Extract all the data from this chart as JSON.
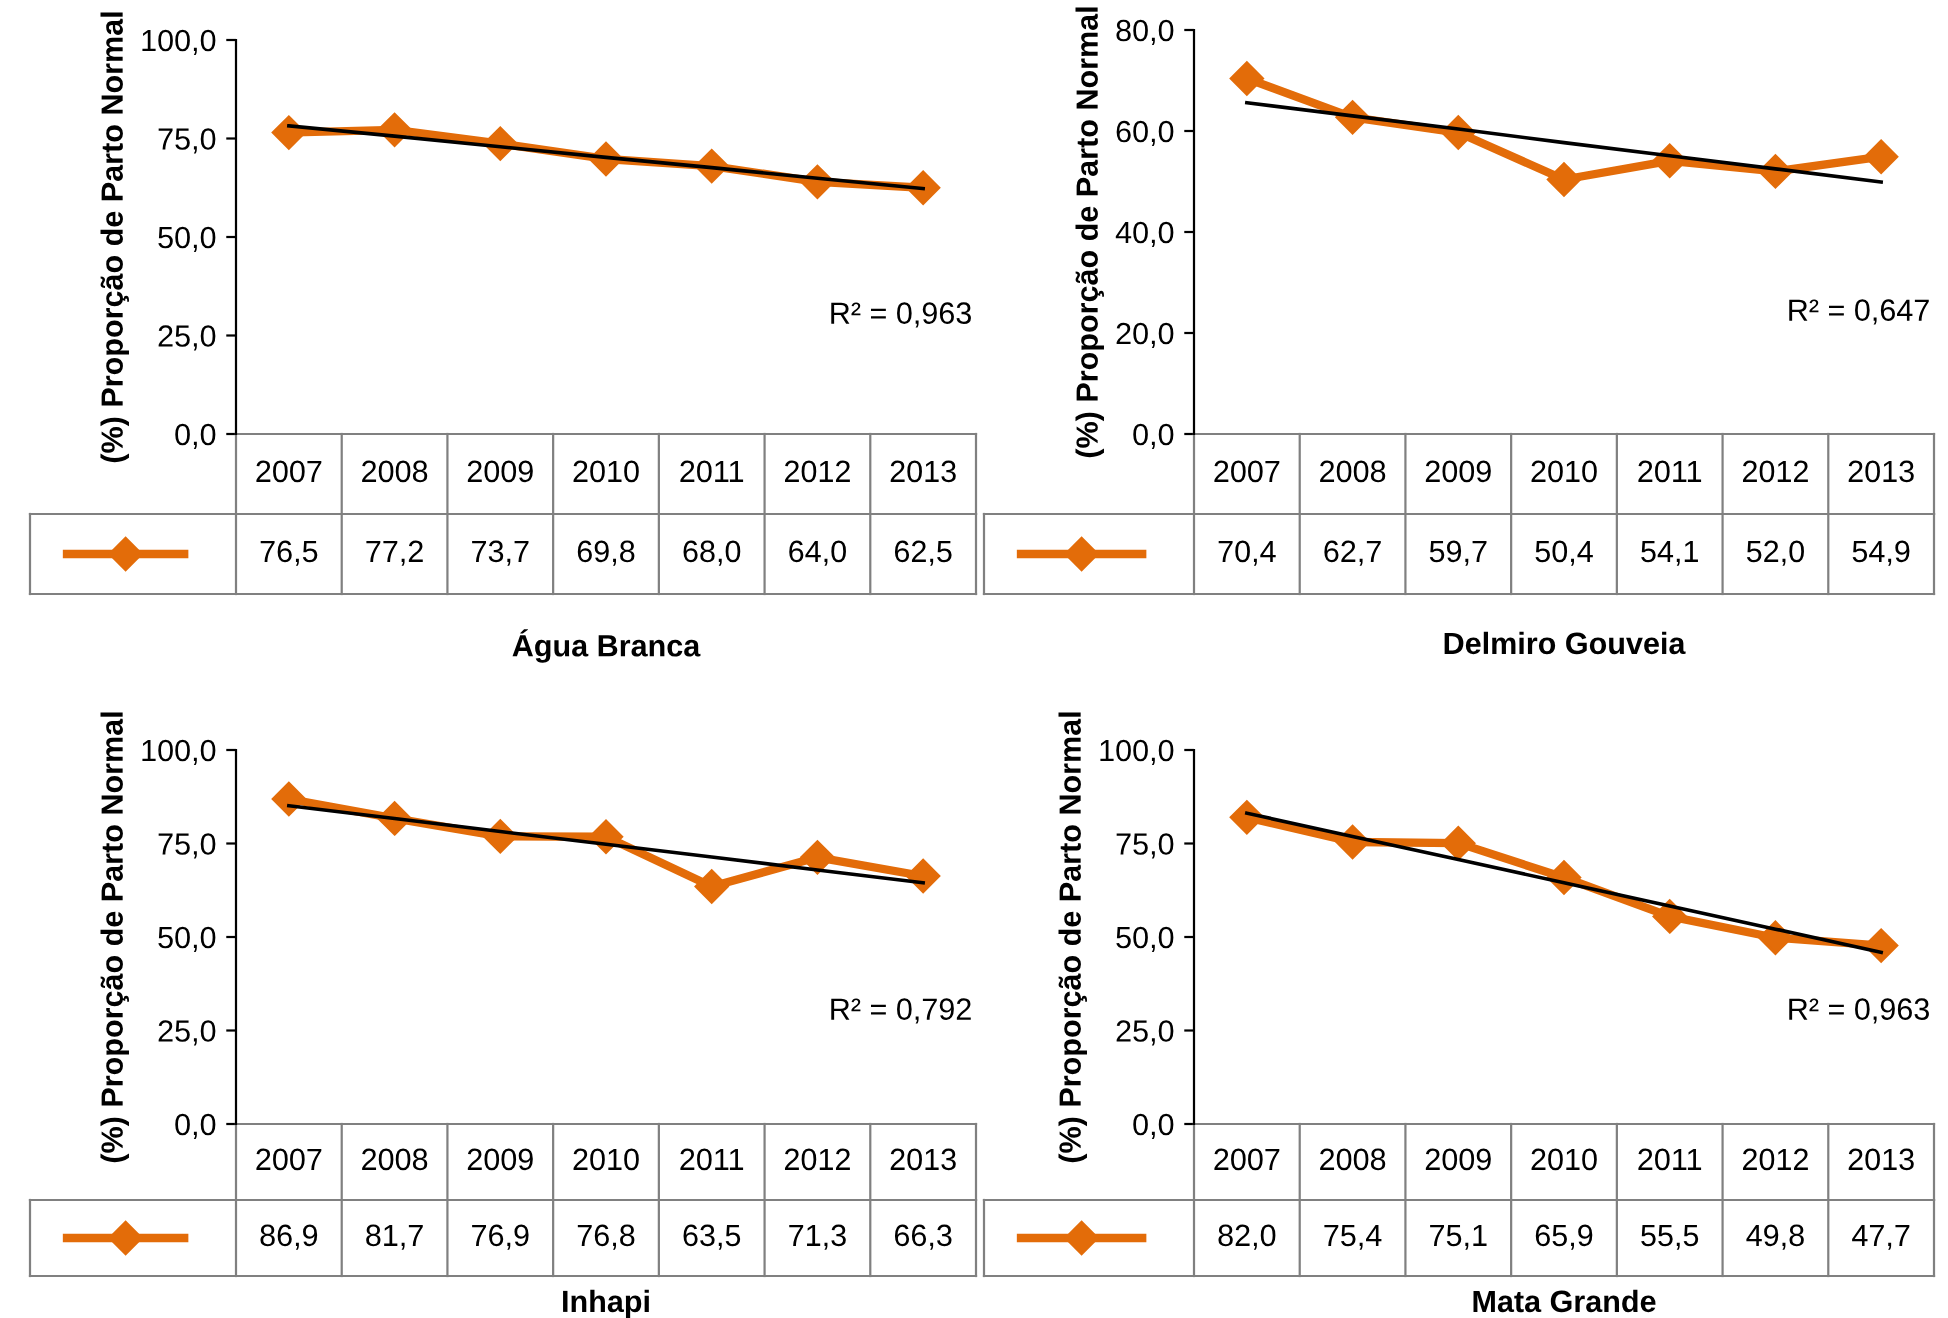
{
  "chart_data": [
    {
      "type": "line",
      "title": "Água Branca",
      "ylabel": "(%) Proporção de Parto Normal",
      "categories": [
        "2007",
        "2008",
        "2009",
        "2010",
        "2011",
        "2012",
        "2013"
      ],
      "ylim": [
        0,
        100
      ],
      "yticks": [
        {
          "value": 0,
          "label": "0,0"
        },
        {
          "value": 25,
          "label": "25,0"
        },
        {
          "value": 50,
          "label": "50,0"
        },
        {
          "value": 75,
          "label": "75,0"
        },
        {
          "value": 100,
          "label": "100,0"
        }
      ],
      "marker": "diamond",
      "grid": false,
      "annotations": [
        "R² = 0,963"
      ],
      "series": [
        {
          "color": "#e36c09",
          "values": [
            76.5,
            77.2,
            73.7,
            69.8,
            68.0,
            64.0,
            62.5
          ],
          "value_labels": [
            "76,5",
            "77,2",
            "73,7",
            "69,8",
            "68,0",
            "64,0",
            "62,5"
          ]
        },
        {
          "type": "line",
          "color": "#000000",
          "marker": "none",
          "values": [
            78.2,
            75.6,
            72.9,
            70.2,
            67.6,
            64.9,
            62.3
          ]
        }
      ]
    },
    {
      "type": "line",
      "title": "Delmiro Gouveia",
      "ylabel": "(%) Proporção de Parto Normal",
      "categories": [
        "2007",
        "2008",
        "2009",
        "2010",
        "2011",
        "2012",
        "2013"
      ],
      "ylim": [
        0,
        80
      ],
      "yticks": [
        {
          "value": 0,
          "label": "0,0"
        },
        {
          "value": 20,
          "label": "20,0"
        },
        {
          "value": 40,
          "label": "40,0"
        },
        {
          "value": 60,
          "label": "60,0"
        },
        {
          "value": 80,
          "label": "80,0"
        }
      ],
      "marker": "diamond",
      "grid": false,
      "annotations": [
        "R² = 0,647"
      ],
      "series": [
        {
          "color": "#e36c09",
          "values": [
            70.4,
            62.7,
            59.7,
            50.4,
            54.1,
            52.0,
            54.9
          ],
          "value_labels": [
            "70,4",
            "62,7",
            "59,7",
            "50,4",
            "54,1",
            "52,0",
            "54,9"
          ]
        },
        {
          "type": "line",
          "color": "#000000",
          "marker": "none",
          "values": [
            65.6,
            63.0,
            60.4,
            57.7,
            55.1,
            52.5,
            49.9
          ]
        }
      ]
    },
    {
      "type": "line",
      "title": "Inhapi",
      "ylabel": "(%) Proporção de Parto Normal",
      "categories": [
        "2007",
        "2008",
        "2009",
        "2010",
        "2011",
        "2012",
        "2013"
      ],
      "ylim": [
        0,
        100
      ],
      "yticks": [
        {
          "value": 0,
          "label": "0,0"
        },
        {
          "value": 25,
          "label": "25,0"
        },
        {
          "value": 50,
          "label": "50,0"
        },
        {
          "value": 75,
          "label": "75,0"
        },
        {
          "value": 100,
          "label": "100,0"
        }
      ],
      "marker": "diamond",
      "grid": false,
      "annotations": [
        "R² = 0,792"
      ],
      "series": [
        {
          "color": "#e36c09",
          "values": [
            86.9,
            81.7,
            76.9,
            76.8,
            63.5,
            71.3,
            66.3
          ],
          "value_labels": [
            "86,9",
            "81,7",
            "76,9",
            "76,8",
            "63,5",
            "71,3",
            "66,3"
          ]
        },
        {
          "type": "line",
          "color": "#000000",
          "marker": "none",
          "values": [
            85.1,
            81.7,
            78.2,
            74.8,
            71.4,
            67.9,
            64.5
          ]
        }
      ]
    },
    {
      "type": "line",
      "title": "Mata Grande",
      "ylabel": "(%) Proporção de Parto Normal",
      "categories": [
        "2007",
        "2008",
        "2009",
        "2010",
        "2011",
        "2012",
        "2013"
      ],
      "ylim": [
        0,
        100
      ],
      "yticks": [
        {
          "value": 0,
          "label": "0,0"
        },
        {
          "value": 25,
          "label": "25,0"
        },
        {
          "value": 50,
          "label": "50,0"
        },
        {
          "value": 75,
          "label": "75,0"
        },
        {
          "value": 100,
          "label": "100,0"
        }
      ],
      "marker": "diamond",
      "grid": false,
      "annotations": [
        "R² = 0,963"
      ],
      "series": [
        {
          "color": "#e36c09",
          "values": [
            82.0,
            75.4,
            75.1,
            65.9,
            55.5,
            49.8,
            47.7
          ],
          "value_labels": [
            "82,0",
            "75,4",
            "75,1",
            "65,9",
            "55,5",
            "49,8",
            "47,7"
          ]
        },
        {
          "type": "line",
          "color": "#000000",
          "marker": "none",
          "values": [
            83.1,
            76.9,
            70.7,
            64.5,
            58.3,
            52.1,
            45.9
          ]
        }
      ]
    }
  ]
}
